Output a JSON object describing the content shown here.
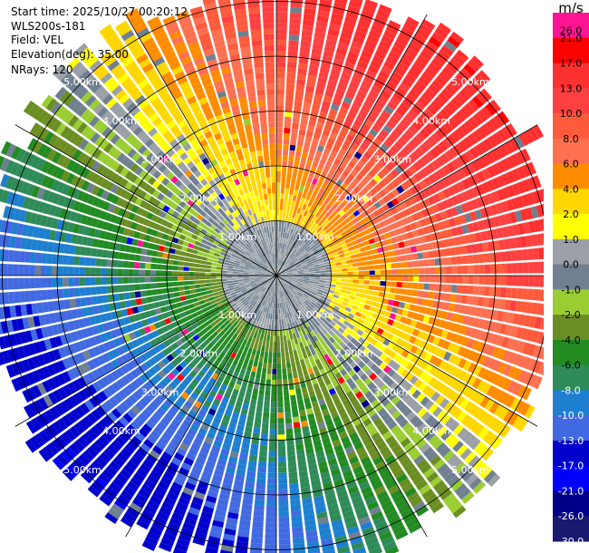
{
  "header": {
    "start_time": "Start time: 2025/10/27 00:20:12",
    "station": "WLS200s-181",
    "field": "Field: VEL",
    "elevation": "Elevation(deg): 35.00",
    "nrays": "NRays: 120"
  },
  "chart_data": {
    "type": "heatmap",
    "projection": "polar (PPI scan)",
    "field": "VEL",
    "units": "m/s",
    "elevation_deg": 35.0,
    "n_rays": 120,
    "range_rings_km": [
      1.0,
      2.0,
      3.0,
      4.0,
      5.0
    ],
    "ring_labels": [
      "1.00km",
      "2.00km",
      "3.00km",
      "4.00km",
      "5.00km"
    ],
    "max_range_km": 5.5,
    "radial_spokes_deg_step": 30,
    "colorbar": {
      "title": "m/s",
      "tick_labels": [
        "26.0",
        "21.0",
        "17.0",
        "13.0",
        "10.0",
        "8.0",
        "6.0",
        "4.0",
        "2.0",
        "1.0",
        "0.0",
        "-1.0",
        "-2.0",
        "-4.0",
        "-6.0",
        "-8.0",
        "-10.0",
        "-13.0",
        "-17.0",
        "-21.0",
        "-26.0",
        "-30.0"
      ],
      "colors": [
        "#ff1493",
        "#ff0000",
        "#ff3030",
        "#ff4040",
        "#ff5a3c",
        "#ff7050",
        "#ff8c00",
        "#ffd700",
        "#ffff00",
        "#9aa0a6",
        "#708090",
        "#9acd32",
        "#6b8e23",
        "#228b22",
        "#2e8b57",
        "#1e7fd0",
        "#4169e1",
        "#0000cd",
        "#0000ff",
        "#00008b",
        "#191970"
      ]
    },
    "pattern": {
      "north_east_sector": "positive velocity, about 10 to 21 m/s at outer ranges",
      "south_west_sector": "negative velocity, about -6 to -13 m/s at outer ranges",
      "inner_1km": "near 0 m/s (grey)",
      "ring_2_to_3km": "speckled noisy gates"
    }
  }
}
